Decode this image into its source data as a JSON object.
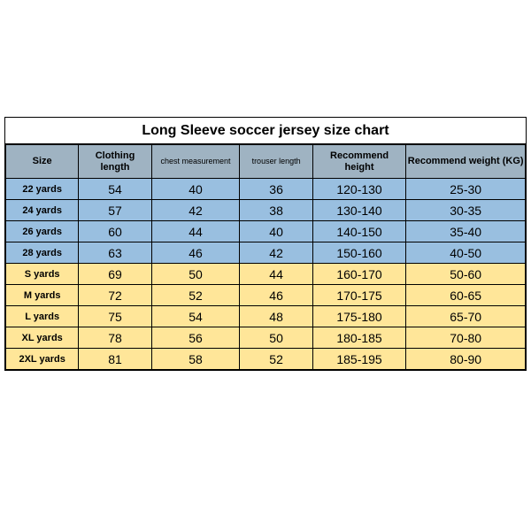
{
  "title": "Long Sleeve soccer jersey size chart",
  "colors": {
    "header_bg": "#9fb3c2",
    "group1_bg": "#99bfe0",
    "group2_bg": "#ffe699",
    "border": "#000000",
    "text": "#000000"
  },
  "columns": [
    {
      "key": "size",
      "label": "Size",
      "class": "col-size"
    },
    {
      "key": "cl",
      "label": "Clothing length",
      "class": "col-cl",
      "wrap": true
    },
    {
      "key": "cm",
      "label": "chest measurement",
      "class": "col-cm",
      "small": true
    },
    {
      "key": "tl",
      "label": "trouser length",
      "class": "col-tl",
      "small": true
    },
    {
      "key": "rh",
      "label": "Recommend height",
      "class": "col-rh",
      "wrap": true
    },
    {
      "key": "rw",
      "label": "Recommend weight (KG)",
      "class": "col-rw"
    }
  ],
  "rows": [
    {
      "group": 1,
      "size": "22 yards",
      "cl": "54",
      "cm": "40",
      "tl": "36",
      "rh": "120-130",
      "rw": "25-30"
    },
    {
      "group": 1,
      "size": "24 yards",
      "cl": "57",
      "cm": "42",
      "tl": "38",
      "rh": "130-140",
      "rw": "30-35"
    },
    {
      "group": 1,
      "size": "26 yards",
      "cl": "60",
      "cm": "44",
      "tl": "40",
      "rh": "140-150",
      "rw": "35-40"
    },
    {
      "group": 1,
      "size": "28 yards",
      "cl": "63",
      "cm": "46",
      "tl": "42",
      "rh": "150-160",
      "rw": "40-50"
    },
    {
      "group": 2,
      "size": "S yards",
      "cl": "69",
      "cm": "50",
      "tl": "44",
      "rh": "160-170",
      "rw": "50-60"
    },
    {
      "group": 2,
      "size": "M yards",
      "cl": "72",
      "cm": "52",
      "tl": "46",
      "rh": "170-175",
      "rw": "60-65"
    },
    {
      "group": 2,
      "size": "L yards",
      "cl": "75",
      "cm": "54",
      "tl": "48",
      "rh": "175-180",
      "rw": "65-70"
    },
    {
      "group": 2,
      "size": "XL yards",
      "cl": "78",
      "cm": "56",
      "tl": "50",
      "rh": "180-185",
      "rw": "70-80"
    },
    {
      "group": 2,
      "size": "2XL yards",
      "cl": "81",
      "cm": "58",
      "tl": "52",
      "rh": "185-195",
      "rw": "80-90"
    }
  ]
}
